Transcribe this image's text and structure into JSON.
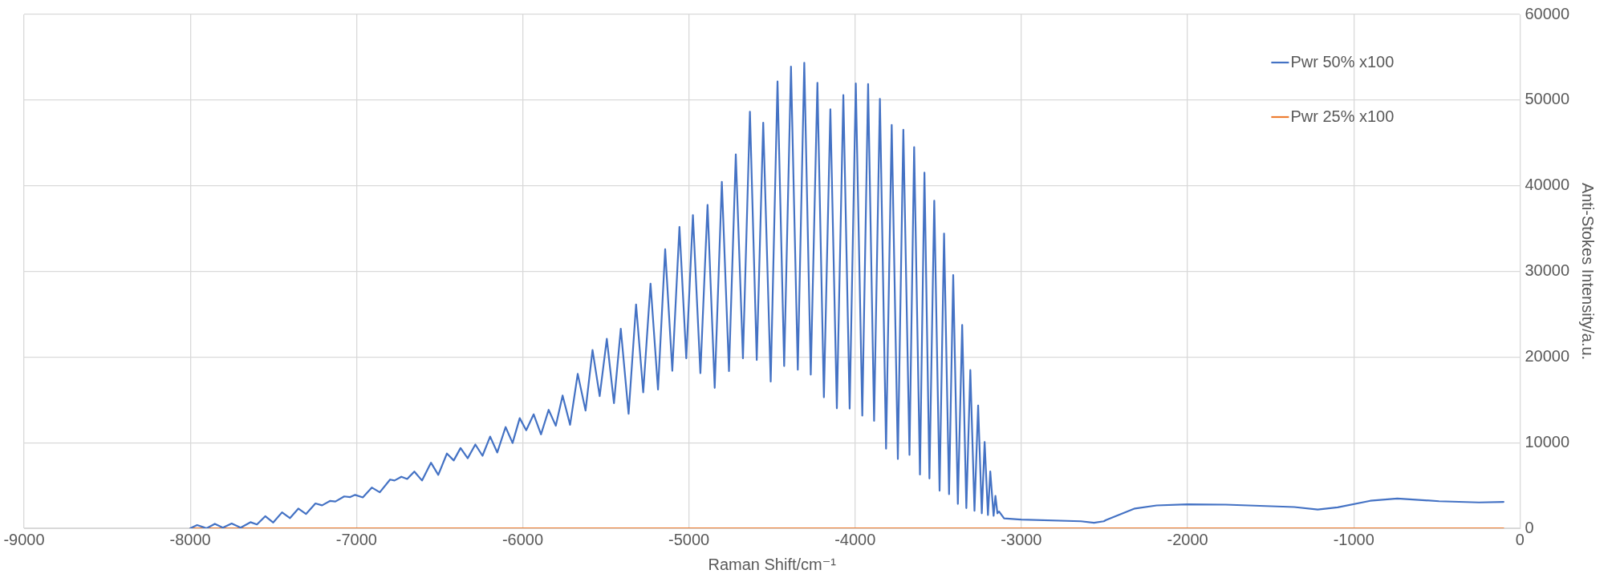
{
  "chart_data": {
    "type": "line",
    "xlabel": "Raman Shift/cm⁻¹",
    "ylabel": "Anti-Stokes Intensity/a.u.",
    "xlim": [
      -9000,
      0
    ],
    "xticks": [
      -9000,
      -8000,
      -7000,
      -6000,
      -5000,
      -4000,
      -3000,
      -2000,
      -1000,
      0
    ],
    "ylim": [
      0,
      60000
    ],
    "yticks": [
      0,
      10000,
      20000,
      30000,
      40000,
      50000,
      60000
    ],
    "grid": true,
    "legend": "top right",
    "marker": "none",
    "line_style": "solid",
    "series": [
      {
        "name": "Pwr 50% x100",
        "color": "#4472c4",
        "x": [
          -8000,
          -7959,
          -7902,
          -7852,
          -7804,
          -7751,
          -7697,
          -7638,
          -7599,
          -7549,
          -7501,
          -7448,
          -7400,
          -7350,
          -7304,
          -7247,
          -7207,
          -7158,
          -7127,
          -7074,
          -7038,
          -7008,
          -6962,
          -6908,
          -6860,
          -6798,
          -6771,
          -6730,
          -6695,
          -6652,
          -6606,
          -6552,
          -6508,
          -6456,
          -6415,
          -6374,
          -6331,
          -6285,
          -6242,
          -6196,
          -6153,
          -6103,
          -6061,
          -6018,
          -5979,
          -5934,
          -5890,
          -5844,
          -5801,
          -5760,
          -5715,
          -5669,
          -5622,
          -5580,
          -5537,
          -5494,
          -5451,
          -5410,
          -5363,
          -5318,
          -5275,
          -5231,
          -5186,
          -5143,
          -5100,
          -5057,
          -5016,
          -4976,
          -4931,
          -4888,
          -4845,
          -4802,
          -4759,
          -4718,
          -4675,
          -4633,
          -4592,
          -4553,
          -4508,
          -4467,
          -4427,
          -4386,
          -4345,
          -4306,
          -4267,
          -4227,
          -4188,
          -4149,
          -4110,
          -4071,
          -4033,
          -3996,
          -3957,
          -3922,
          -3886,
          -3851,
          -3814,
          -3780,
          -3743,
          -3710,
          -3673,
          -3645,
          -3610,
          -3583,
          -3553,
          -3524,
          -3492,
          -3465,
          -3435,
          -3410,
          -3382,
          -3356,
          -3331,
          -3307,
          -3282,
          -3260,
          -3238,
          -3221,
          -3201,
          -3187,
          -3167,
          -3156,
          -3144,
          -3134,
          -3104,
          -3000,
          -2642,
          -2563,
          -2504,
          -2491,
          -2317,
          -2186,
          -2001,
          -1772,
          -1358,
          -1217,
          -1097,
          -901,
          -738,
          -487,
          -247,
          -99
        ],
        "values": [
          0,
          370,
          0,
          520,
          70,
          560,
          70,
          710,
          450,
          1410,
          670,
          1860,
          1190,
          2300,
          1670,
          2900,
          2680,
          3200,
          3120,
          3720,
          3640,
          3900,
          3610,
          4760,
          4200,
          5690,
          5580,
          6020,
          5760,
          6620,
          5580,
          7660,
          6240,
          8730,
          7920,
          9370,
          8180,
          9780,
          8470,
          10710,
          8850,
          11820,
          9960,
          12860,
          11450,
          13310,
          10970,
          13830,
          11970,
          15500,
          12080,
          18030,
          13750,
          20810,
          15430,
          22120,
          14610,
          23300,
          13360,
          26140,
          15870,
          28570,
          16200,
          32580,
          18390,
          35180,
          19850,
          36560,
          18110,
          37770,
          16400,
          40450,
          18350,
          43660,
          19850,
          48650,
          19650,
          47350,
          17130,
          52170,
          18950,
          53910,
          18510,
          54360,
          17940,
          52010,
          15300,
          48930,
          14010,
          50590,
          13970,
          51930,
          13160,
          51880,
          12550,
          50140,
          9300,
          47100,
          8090,
          46540,
          8570,
          44500,
          6270,
          41530,
          5820,
          38240,
          4390,
          34420,
          3990,
          29560,
          2850,
          23750,
          2360,
          18470,
          2040,
          14330,
          1750,
          10070,
          1550,
          6630,
          1470,
          3790,
          1750,
          1960,
          1150,
          1020,
          820,
          650,
          820,
          960,
          2310,
          2670,
          2800,
          2760,
          2480,
          2180,
          2450,
          3210,
          3480,
          3160,
          3020,
          3080
        ]
      },
      {
        "name": "Pwr 25% x100",
        "color": "#ed7d31",
        "x": [
          -8000,
          -100
        ],
        "values": [
          0,
          0
        ]
      }
    ]
  }
}
